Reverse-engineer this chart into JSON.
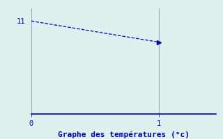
{
  "x": [
    0,
    1
  ],
  "y": [
    11,
    8.5
  ],
  "line_color": "#0000bb",
  "marker": ">",
  "marker_size": 4,
  "background_color": "#dff0ee",
  "plot_bg_color": "#dff0ee",
  "xlabel": "Graphe des températures (°c)",
  "xlabel_color": "#0000bb",
  "xlabel_fontsize": 8,
  "tick_color": "#0000bb",
  "tick_fontsize": 7.5,
  "axis_color": "#8ab0b8",
  "bottom_color": "#0000bb",
  "xlim": [
    0,
    1.45
  ],
  "ylim": [
    0,
    12.5
  ],
  "xticks": [
    0,
    1
  ],
  "yticks": [
    11
  ],
  "line_style": "--",
  "line_width": 0.9,
  "vline_x": [
    0,
    1
  ],
  "hline_y": 0
}
